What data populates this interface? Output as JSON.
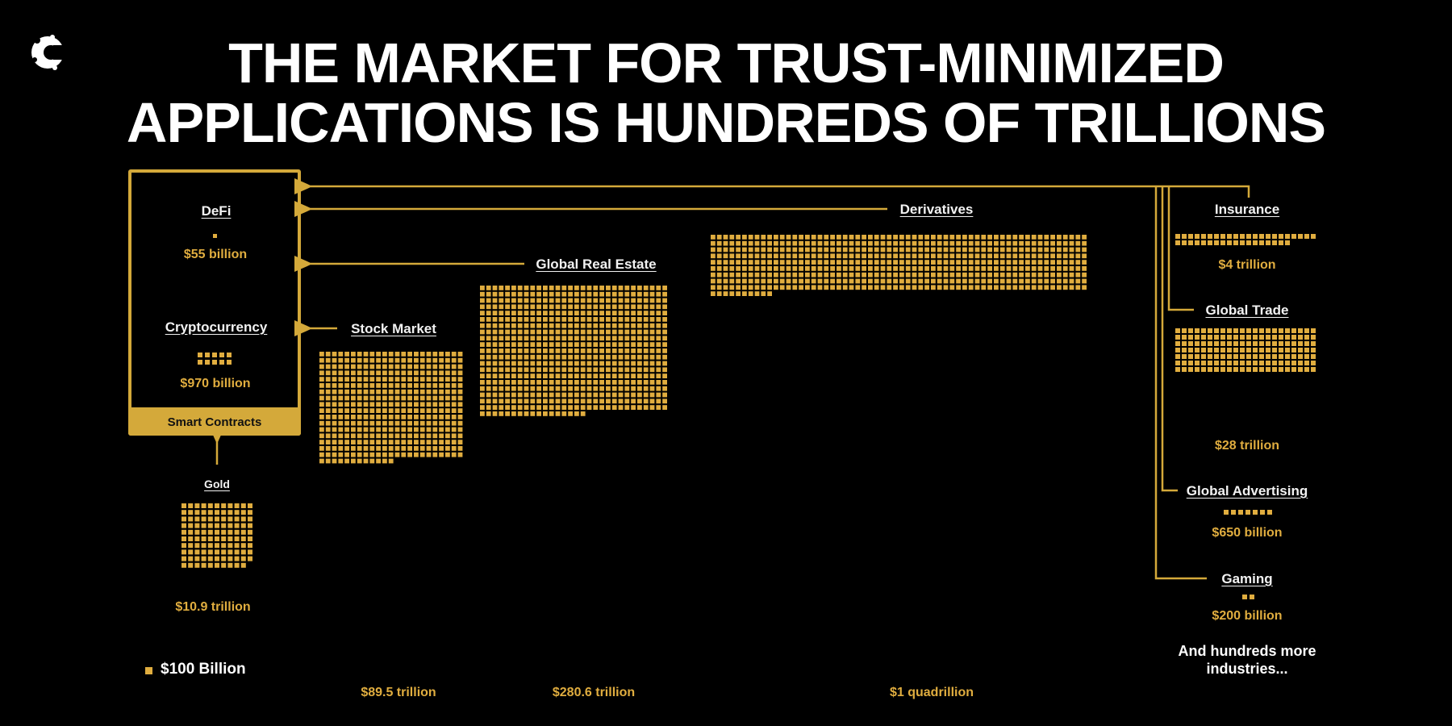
{
  "header": {
    "line1": "THE MARKET FOR TRUST-MINIMIZED",
    "line2": "APPLICATIONS IS HUNDREDS OF TRILLIONS"
  },
  "colors": {
    "accent": "#e0ad3f",
    "background": "#000000",
    "text": "#ffffff"
  },
  "chart_data": {
    "type": "unit-grid",
    "title": "THE MARKET FOR TRUST-MINIMIZED APPLICATIONS IS HUNDREDS OF TRILLIONS",
    "unit": {
      "label": "$100 Billion",
      "value_billion": 100
    },
    "container_label": "Smart Contracts",
    "note": "And hundreds more industries...",
    "series": [
      {
        "name": "DeFi",
        "value_label": "$55 billion",
        "value_billion": 55,
        "group": "smart-contracts"
      },
      {
        "name": "Cryptocurrency",
        "value_label": "$970 billion",
        "value_billion": 970,
        "group": "smart-contracts"
      },
      {
        "name": "Gold",
        "value_label": "$10.9 trillion",
        "value_billion": 10900
      },
      {
        "name": "Stock Market",
        "value_label": "$89.5 trillion",
        "value_billion": 89500
      },
      {
        "name": "Global Real Estate",
        "value_label": "$280.6 trillion",
        "value_billion": 280600
      },
      {
        "name": "Derivatives",
        "value_label": "$1 quadrillion",
        "value_billion": 1000000
      },
      {
        "name": "Insurance",
        "value_label": "$4 trillion",
        "value_billion": 4000
      },
      {
        "name": "Global Trade",
        "value_label": "$28 trillion",
        "value_billion": 28000
      },
      {
        "name": "Global Advertising",
        "value_label": "$650 billion",
        "value_billion": 650
      },
      {
        "name": "Gaming",
        "value_label": "$200 billion",
        "value_billion": 200
      }
    ]
  }
}
